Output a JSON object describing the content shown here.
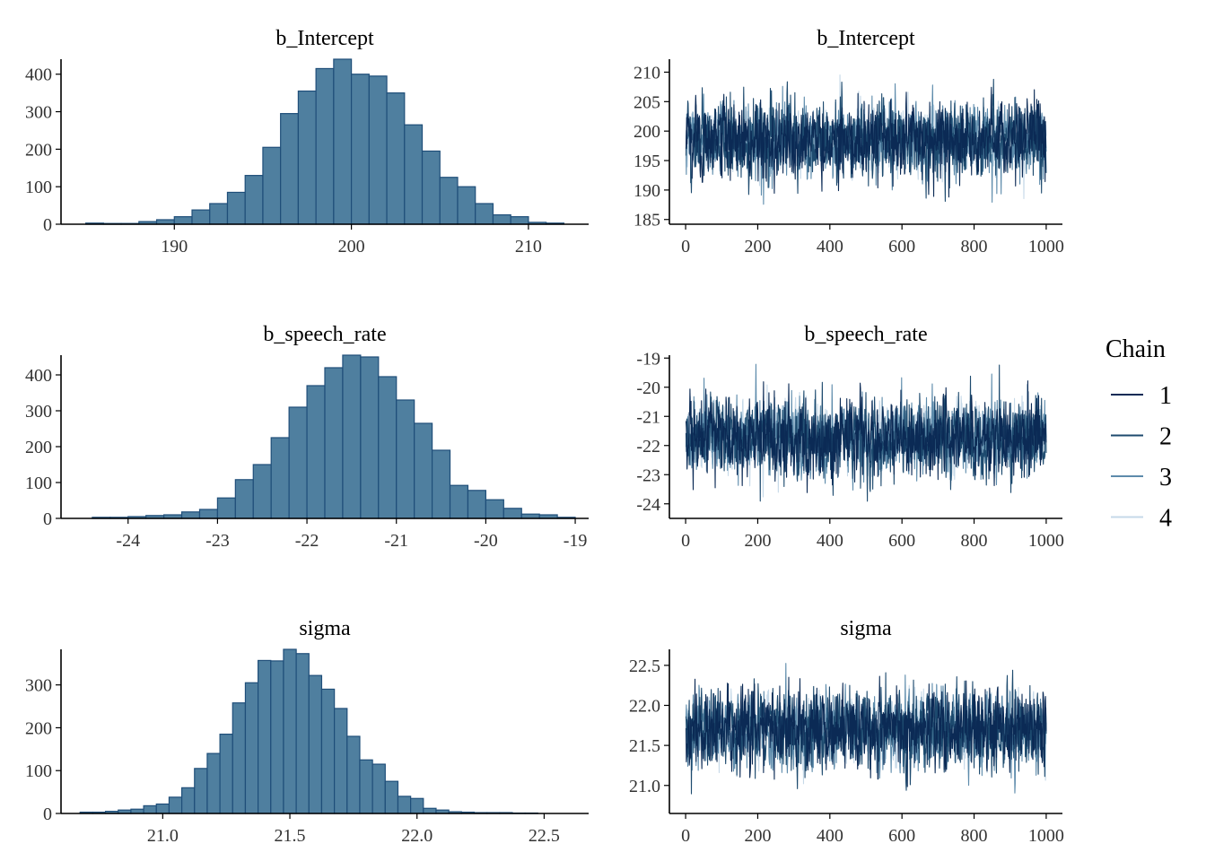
{
  "colors": {
    "hist_fill": "#4f7f9f",
    "hist_stroke": "#1f4e79",
    "chains": [
      "#0b2a55",
      "#1d4a6e",
      "#5d8bab",
      "#c6d9e8"
    ]
  },
  "legend": {
    "title": "Chain",
    "labels": [
      "1",
      "2",
      "3",
      "4"
    ]
  },
  "chart_data": [
    {
      "type": "bar",
      "title": "b_Intercept",
      "bin_edges": [
        185,
        186,
        187,
        188,
        189,
        190,
        191,
        192,
        193,
        194,
        195,
        196,
        197,
        198,
        199,
        200,
        201,
        202,
        203,
        204,
        205,
        206,
        207,
        208,
        209,
        210,
        211,
        212
      ],
      "values": [
        3,
        2,
        2,
        7,
        12,
        20,
        38,
        55,
        85,
        130,
        205,
        295,
        355,
        415,
        440,
        400,
        395,
        350,
        265,
        195,
        125,
        100,
        55,
        25,
        20,
        5,
        3
      ],
      "xticks": [
        190,
        200,
        210
      ],
      "yticks": [
        0,
        100,
        200,
        300,
        400
      ],
      "xlim": [
        183.6,
        213.4
      ],
      "ylim": [
        0,
        440
      ],
      "grid": false
    },
    {
      "type": "line",
      "title": "b_Intercept",
      "series_names": [
        "1",
        "2",
        "3",
        "4"
      ],
      "x_range": [
        1,
        1000
      ],
      "center": 198.5,
      "spread": 3.1,
      "xticks": [
        0,
        200,
        400,
        600,
        800,
        1000
      ],
      "yticks": [
        185,
        190,
        195,
        200,
        205,
        210
      ],
      "xlim": [
        -45,
        1045
      ],
      "ylim": [
        184.2,
        212.2
      ],
      "grid": false
    },
    {
      "type": "bar",
      "title": "b_speech_rate",
      "bin_edges": [
        -24.4,
        -24.2,
        -24.0,
        -23.8,
        -23.6,
        -23.4,
        -23.2,
        -23.0,
        -22.8,
        -22.6,
        -22.4,
        -22.2,
        -22.0,
        -21.8,
        -21.6,
        -21.4,
        -21.2,
        -21.0,
        -20.8,
        -20.6,
        -20.4,
        -20.2,
        -20.0,
        -19.8,
        -19.6,
        -19.4,
        -19.2,
        -19.0
      ],
      "values": [
        3,
        3,
        5,
        8,
        10,
        18,
        25,
        57,
        108,
        150,
        225,
        310,
        370,
        420,
        455,
        450,
        395,
        330,
        265,
        190,
        92,
        78,
        52,
        28,
        12,
        10,
        3
      ],
      "xticks": [
        -24,
        -23,
        -22,
        -21,
        -20,
        -19
      ],
      "yticks": [
        0,
        100,
        200,
        300,
        400
      ],
      "xlim": [
        -24.75,
        -18.85
      ],
      "ylim": [
        0,
        455
      ],
      "grid": false
    },
    {
      "type": "line",
      "title": "b_speech_rate",
      "series_names": [
        "1",
        "2",
        "3",
        "4"
      ],
      "x_range": [
        1,
        1000
      ],
      "center": -21.7,
      "spread": 0.65,
      "xticks": [
        0,
        200,
        400,
        600,
        800,
        1000
      ],
      "yticks": [
        -19,
        -20,
        -21,
        -22,
        -23,
        -24
      ],
      "xlim": [
        -45,
        1045
      ],
      "ylim": [
        -24.5,
        -18.9
      ],
      "grid": false
    },
    {
      "type": "bar",
      "title": "sigma",
      "bin_edges": [
        20.675,
        20.725,
        20.775,
        20.825,
        20.875,
        20.925,
        20.975,
        21.025,
        21.075,
        21.125,
        21.175,
        21.225,
        21.275,
        21.325,
        21.375,
        21.425,
        21.475,
        21.525,
        21.575,
        21.625,
        21.675,
        21.725,
        21.775,
        21.825,
        21.875,
        21.925,
        21.975,
        22.025,
        22.075,
        22.125,
        22.175,
        22.225,
        22.275,
        22.325,
        22.375,
        22.425,
        22.475,
        22.525,
        22.575,
        22.625
      ],
      "values": [
        3,
        3,
        5,
        8,
        10,
        18,
        22,
        38,
        60,
        105,
        140,
        185,
        258,
        305,
        357,
        356,
        383,
        373,
        322,
        290,
        245,
        180,
        125,
        115,
        75,
        40,
        35,
        12,
        8,
        4,
        3,
        2,
        2,
        2,
        1,
        1,
        0,
        0,
        0
      ],
      "xticks": [
        21.0,
        21.5,
        22.0,
        22.5
      ],
      "yticks": [
        0,
        100,
        200,
        300
      ],
      "xlim": [
        20.6,
        22.675
      ],
      "ylim": [
        0,
        383
      ],
      "grid": false
    },
    {
      "type": "line",
      "title": "sigma",
      "series_names": [
        "1",
        "2",
        "3",
        "4"
      ],
      "x_range": [
        1,
        1000
      ],
      "center": 21.7,
      "spread": 0.24,
      "xticks": [
        0,
        200,
        400,
        600,
        800,
        1000
      ],
      "yticks": [
        21.0,
        21.5,
        22.0,
        22.5
      ],
      "xlim": [
        -45,
        1045
      ],
      "ylim": [
        20.65,
        22.7
      ],
      "grid": false
    }
  ]
}
